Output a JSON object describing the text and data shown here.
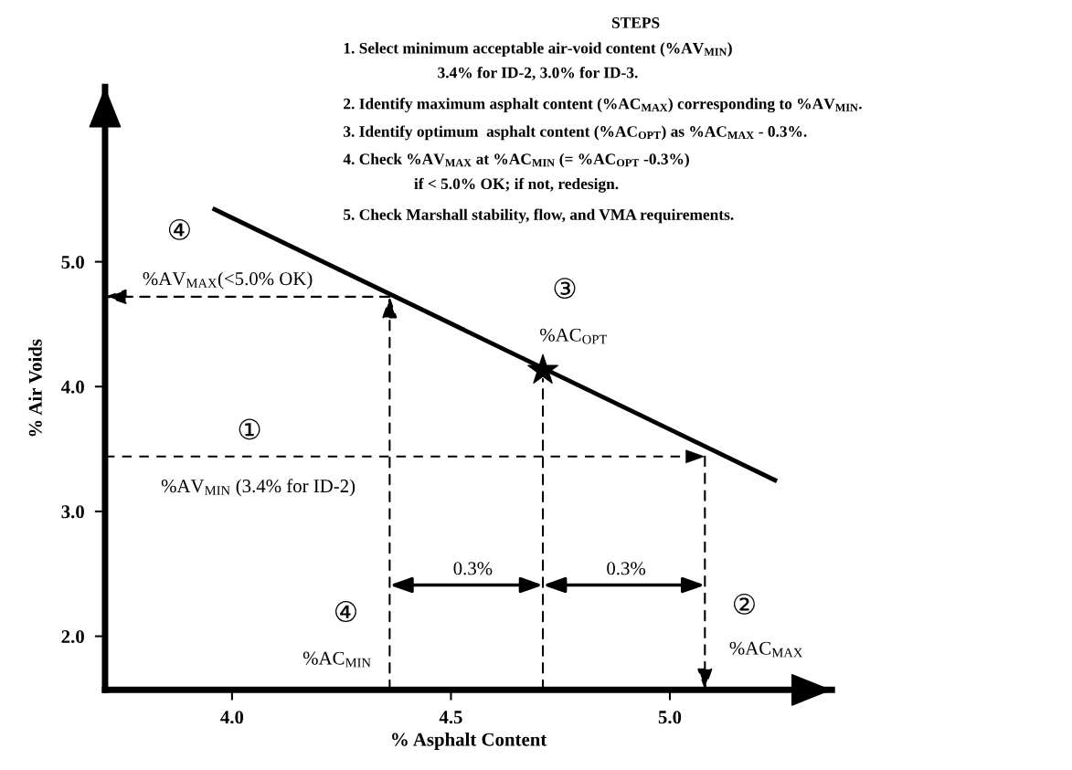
{
  "chart_data": {
    "type": "line",
    "title": "STEPS",
    "xlabel": "% Asphalt Content",
    "ylabel": "% Air Voids",
    "xlim": [
      3.71,
      5.37
    ],
    "ylim": [
      1.57,
      6.4
    ],
    "xticks": [
      {
        "value": 4.0,
        "label": "4.0"
      },
      4.5,
      {
        "value": 5.0,
        "label": "5.0"
      }
    ],
    "yticks": [
      {
        "value": 2.0,
        "label": "2.0"
      },
      {
        "value": 3.0,
        "label": "3.0"
      },
      {
        "value": 4.0,
        "label": "4.0"
      },
      {
        "value": 5.0,
        "label": "5.0"
      }
    ],
    "ref_lines": [
      {
        "axis": "y",
        "value": 3.44,
        "label": "%AV$_{MIN}$ (3.4% for ID-2)",
        "color": "#000000",
        "line_style": "dashed"
      }
    ],
    "series": [
      {
        "color": "#000000",
        "line_style": "solid",
        "x": [
          3.96,
          5.24
        ],
        "values": [
          5.42,
          3.25
        ]
      },
      {
        "type": "scatter",
        "color": "#000000",
        "marker": "star",
        "x": [
          4.71
        ],
        "values": [
          4.13
        ]
      }
    ],
    "annotations": [
      "1. Select minimum acceptable air-void content (%AV$_{MIN}$)\n3.4% for ID-2, 3.0% for ID-3.",
      "2. Identify maximum asphalt content (%AC$_{MAX}$) corresponding to %AV$_{MIN}$.",
      "3. Identify optimum  asphalt content (%AC$_{OPT}$) as %AC$_{MAX}$ - 0.3%.",
      "4. Check %AV$_{MAX}$ at %AC$_{MIN}$ (= %AC$_{OPT}$ -0.3%)\nif < 5.0% OK; if not, redesign.",
      "5. Check Marshall stability, flow, and VMA requirements.",
      "④",
      "%AV$_{MAX}$(<5.0% OK)",
      "①",
      "0.3%",
      "④",
      "%AC$_{MIN}$",
      "③",
      "%AC$_{OPT}$",
      "0.3%",
      "②",
      "%AC$_{MAX}$"
    ]
  }
}
